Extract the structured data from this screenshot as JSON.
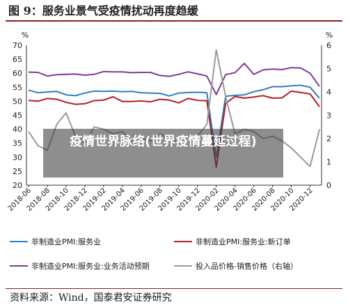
{
  "figure": {
    "title": "图 9：服务业景气受疫情扰动再度趋缓",
    "overlay_text": "疫情世界脉络(世界疫情蔓延过程)",
    "source": "资料来源：Wind，国泰君安证券研究"
  },
  "chart_data": {
    "type": "line",
    "title": "服务业景气受疫情扰动再度趋缓",
    "ylabel_left": "%",
    "ylabel_right": "%",
    "ylim_left": [
      20,
      70
    ],
    "yticks_left": [
      20,
      25,
      30,
      35,
      40,
      45,
      50,
      55,
      60,
      65,
      70
    ],
    "ylim_right": [
      0,
      6
    ],
    "yticks_right": [
      0,
      1,
      2,
      3,
      4,
      5,
      6
    ],
    "grid": false,
    "legend_position": "bottom",
    "x": [
      "2018-06",
      "2018-07",
      "2018-08",
      "2018-09",
      "2018-10",
      "2018-11",
      "2018-12",
      "2019-01",
      "2019-02",
      "2019-03",
      "2019-04",
      "2019-05",
      "2019-06",
      "2019-07",
      "2019-08",
      "2019-09",
      "2019-10",
      "2019-11",
      "2019-12",
      "2020-01",
      "2020-02",
      "2020-03",
      "2020-04",
      "2020-05",
      "2020-06",
      "2020-07",
      "2020-08",
      "2020-09",
      "2020-10",
      "2020-11",
      "2020-12",
      "2021-01"
    ],
    "x_ticks": [
      "2018-06",
      "2018-08",
      "2018-10",
      "2018-12",
      "2019-02",
      "2019-04",
      "2019-06",
      "2019-08",
      "2019-10",
      "2019-12",
      "2020-02",
      "2020-04",
      "2020-06",
      "2020-08",
      "2020-10",
      "2020-12"
    ],
    "series": [
      {
        "name": "非制造业PMI:服务业",
        "axis": "left",
        "color": "#2e7ec1",
        "values": [
          54.0,
          53.0,
          53.3,
          53.5,
          52.3,
          52.0,
          52.9,
          53.6,
          53.5,
          53.6,
          53.4,
          53.5,
          53.0,
          52.9,
          52.8,
          51.9,
          52.9,
          53.1,
          53.2,
          53.0,
          30.0,
          51.8,
          52.1,
          52.3,
          53.4,
          54.1,
          55.2,
          55.2,
          55.5,
          55.7,
          55.0,
          51.1
        ]
      },
      {
        "name": "非制造业PMI:服务业:新订单",
        "axis": "left",
        "color": "#b51f22",
        "values": [
          50.3,
          50.0,
          51.0,
          50.7,
          49.6,
          48.9,
          49.1,
          50.2,
          50.4,
          51.6,
          49.9,
          49.9,
          50.1,
          49.8,
          50.7,
          50.4,
          49.4,
          51.0,
          50.3,
          50.2,
          26.4,
          49.2,
          51.7,
          51.1,
          51.5,
          52.0,
          51.1,
          51.2,
          53.6,
          53.1,
          52.6,
          48.0
        ]
      },
      {
        "name": "非制造业PMI:服务业:业务活动预期",
        "axis": "left",
        "color": "#7e3a96",
        "values": [
          60.4,
          60.3,
          59.0,
          59.5,
          59.6,
          59.7,
          59.3,
          59.6,
          60.6,
          60.5,
          60.5,
          60.2,
          60.3,
          60.3,
          59.2,
          58.9,
          59.6,
          60.5,
          59.8,
          59.0,
          52.4,
          59.5,
          60.2,
          63.5,
          59.6,
          61.2,
          61.5,
          61.3,
          62.0,
          61.9,
          60.0,
          55.3
        ]
      },
      {
        "name": "投入品价格-销售价格（右轴）",
        "axis": "right",
        "color": "#9a9a9a",
        "values": [
          2.3,
          1.7,
          1.5,
          2.6,
          3.1,
          2.1,
          1.8,
          2.5,
          2.4,
          2.2,
          2.3,
          1.9,
          2.0,
          1.9,
          2.2,
          2.0,
          1.8,
          1.9,
          2.1,
          2.6,
          5.8,
          3.8,
          2.2,
          2.4,
          2.3,
          2.0,
          2.1,
          1.9,
          1.6,
          1.2,
          0.8,
          2.4
        ]
      }
    ]
  }
}
